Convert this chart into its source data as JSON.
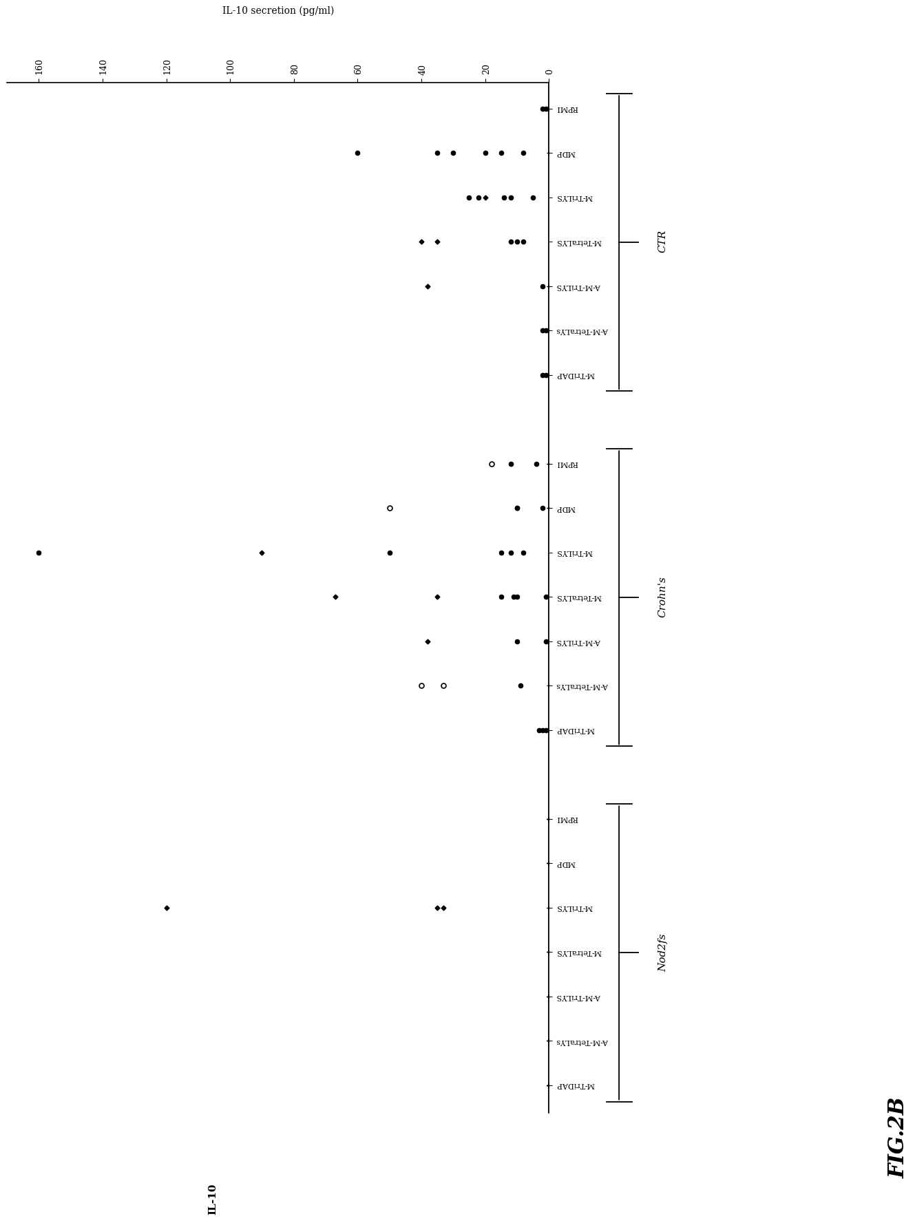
{
  "title": "IL-10",
  "ylabel_right": "IL-10 secretion (pg/ml)",
  "ylim": [
    0,
    170
  ],
  "yticks": [
    0,
    20,
    40,
    60,
    80,
    100,
    120,
    140,
    160
  ],
  "groups": [
    {
      "name": "Nod2fs",
      "conditions": [
        "M-TriDAP",
        "A-M-TetraLYs",
        "A-M-TriLYS",
        "M-TetraLYS",
        "M-TriLYS",
        "MDP",
        "RPMI"
      ],
      "data": {
        "M-TriDAP": {
          "filled": [
            0,
            0,
            0,
            0,
            0
          ],
          "open": [],
          "cross": [
            0,
            0
          ]
        },
        "A-M-TetraLYs": {
          "filled": [
            0,
            0,
            0
          ],
          "open": [],
          "cross": [
            0,
            0
          ]
        },
        "A-M-TriLYS": {
          "filled": [
            0,
            0,
            0
          ],
          "open": [],
          "cross": [
            0,
            0
          ]
        },
        "M-TetraLYS": {
          "filled": [
            0,
            0,
            0
          ],
          "open": [],
          "cross": [
            0
          ]
        },
        "M-TriLYS": {
          "filled": [
            0,
            0
          ],
          "open": [],
          "cross": [
            120,
            35,
            33
          ]
        },
        "MDP": {
          "filled": [
            0,
            0,
            0,
            0
          ],
          "open": [],
          "cross": [
            0
          ]
        },
        "RPMI": {
          "filled": [
            0,
            0,
            0,
            0
          ],
          "open": [],
          "cross": [
            0
          ]
        }
      }
    },
    {
      "name": "Crohn's",
      "conditions": [
        "M-TriDAP",
        "A-M-TetraLYs",
        "A-M-TriLYS",
        "M-TetraLYS",
        "M-TriLYS",
        "MDP",
        "RPMI"
      ],
      "data": {
        "M-TriDAP": {
          "filled": [
            3,
            2,
            1
          ],
          "open": [],
          "cross": [
            0,
            0
          ]
        },
        "A-M-TetraLYs": {
          "filled": [
            9
          ],
          "open": [
            40,
            33
          ],
          "cross": [
            0
          ]
        },
        "A-M-TriLYS": {
          "filled": [
            10,
            1
          ],
          "open": [],
          "cross": [
            38,
            0
          ]
        },
        "M-TetraLYS": {
          "filled": [
            15,
            11,
            10,
            1
          ],
          "open": [],
          "cross": [
            67,
            35
          ]
        },
        "M-TriLYS": {
          "filled": [
            160,
            50,
            15,
            12,
            8
          ],
          "open": [],
          "cross": [
            90
          ]
        },
        "MDP": {
          "filled": [
            10,
            10,
            2,
            0
          ],
          "open": [
            50
          ],
          "cross": [
            0
          ]
        },
        "RPMI": {
          "filled": [
            12,
            4
          ],
          "open": [
            18
          ],
          "cross": [
            0,
            0
          ]
        }
      }
    },
    {
      "name": "CTR",
      "conditions": [
        "M-TriDAP",
        "A-M-TetraLYs",
        "A-M-TriLYS",
        "M-TetraLYS",
        "M-TriLYS",
        "MDP",
        "RPMI"
      ],
      "data": {
        "M-TriDAP": {
          "filled": [
            2,
            1,
            0
          ],
          "open": [],
          "cross": [
            0,
            0
          ]
        },
        "A-M-TetraLYs": {
          "filled": [
            2,
            1,
            0
          ],
          "open": [],
          "cross": [
            0,
            0
          ]
        },
        "A-M-TriLYS": {
          "filled": [
            2,
            0
          ],
          "open": [],
          "cross": [
            38,
            0
          ]
        },
        "M-TetraLYS": {
          "filled": [
            12,
            10,
            8
          ],
          "open": [],
          "cross": [
            40,
            35
          ]
        },
        "M-TriLYS": {
          "filled": [
            25,
            22,
            14,
            12,
            5
          ],
          "open": [],
          "cross": [
            20
          ]
        },
        "MDP": {
          "filled": [
            60,
            35,
            30,
            20,
            15,
            8
          ],
          "open": [],
          "cross": [
            0
          ]
        },
        "RPMI": {
          "filled": [
            2,
            1,
            0,
            0
          ],
          "open": [],
          "cross": [
            0
          ]
        }
      }
    }
  ],
  "background_color": "#ffffff",
  "fig_width": 19.19,
  "fig_height": 15.14
}
